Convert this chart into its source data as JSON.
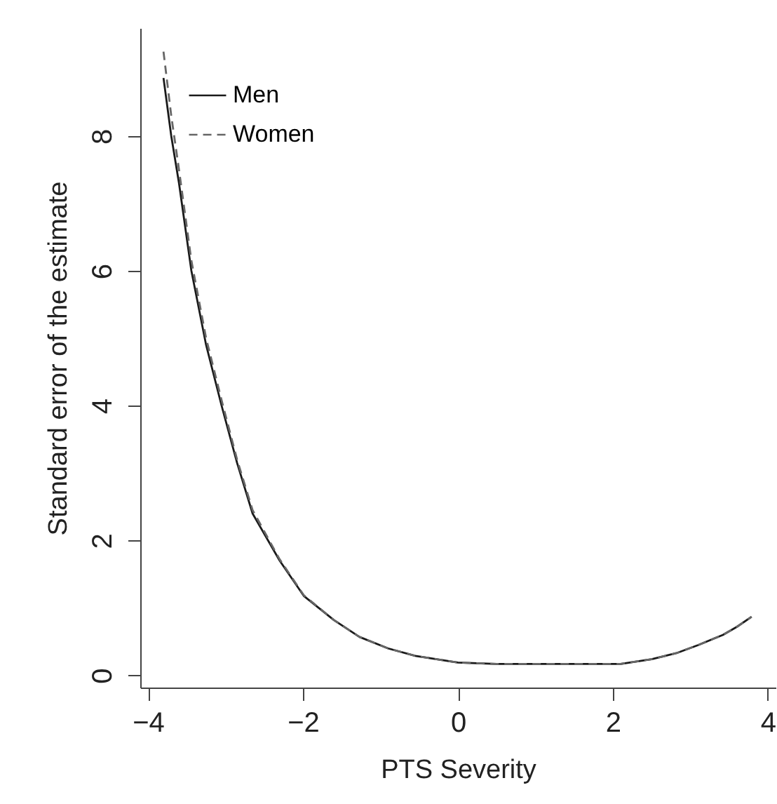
{
  "chart_data": {
    "type": "line",
    "xlabel": "PTS Severity",
    "ylabel": "Standard error of the estimate",
    "x": [
      -3.8,
      -3.7,
      -3.6,
      -3.44,
      -3.25,
      -3.05,
      -2.85,
      -2.65,
      -2.3,
      -1.99,
      -1.6,
      -1.27,
      -0.9,
      -0.55,
      0,
      0.5,
      1,
      1.5,
      2.1,
      2.5,
      2.82,
      3.1,
      3.42,
      3.6,
      3.79
    ],
    "series": [
      {
        "name": "Men",
        "color": "#1a1a1a",
        "line_style": "solid",
        "values": [
          8.86,
          8.0,
          7.3,
          6.0,
          4.9,
          4.0,
          3.15,
          2.4,
          1.7,
          1.18,
          0.82,
          0.57,
          0.4,
          0.29,
          0.19,
          0.17,
          0.17,
          0.17,
          0.17,
          0.24,
          0.33,
          0.45,
          0.6,
          0.72,
          0.87
        ]
      },
      {
        "name": "Women",
        "color": "#666666",
        "line_style": "dashed",
        "values": [
          9.25,
          8.3,
          7.5,
          6.15,
          5.0,
          4.08,
          3.2,
          2.45,
          1.72,
          1.19,
          0.82,
          0.57,
          0.4,
          0.29,
          0.19,
          0.17,
          0.17,
          0.17,
          0.17,
          0.24,
          0.33,
          0.45,
          0.6,
          0.72,
          0.87
        ]
      }
    ],
    "xlim": [
      -4.1,
      4.1
    ],
    "xticks": [
      -4,
      -2,
      0,
      2,
      4
    ],
    "ylim": [
      -0.18,
      9.6
    ],
    "yticks": [
      0,
      2,
      4,
      6,
      8
    ],
    "grid": false,
    "legend": "top left",
    "marker": "none"
  }
}
